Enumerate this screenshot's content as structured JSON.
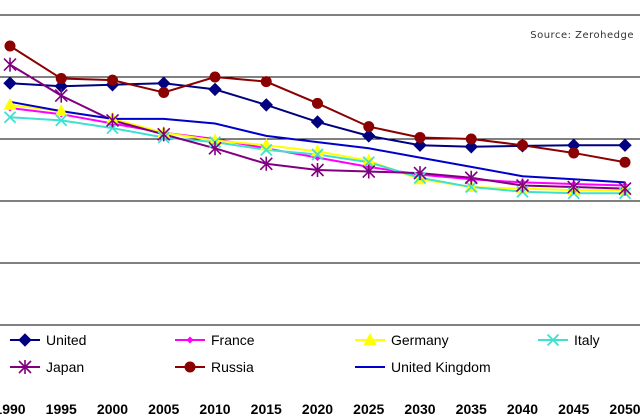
{
  "source": "Source: Zerohedge",
  "chart_data": {
    "type": "line",
    "categories": [
      "1990",
      "1995",
      "2000",
      "2005",
      "2010",
      "2015",
      "2020",
      "2025",
      "2030",
      "2035",
      "2040",
      "2045",
      "2050"
    ],
    "ylim": [
      0,
      1000
    ],
    "grid": true,
    "legend_position": "bottom",
    "series": [
      {
        "name": "United",
        "color": "#000080",
        "marker": "diamond",
        "values": [
          780,
          770,
          775,
          780,
          760,
          710,
          655,
          610,
          580,
          575,
          578,
          580,
          580
        ]
      },
      {
        "name": "France",
        "color": "#ff00ff",
        "marker": "small-diamond",
        "values": [
          700,
          680,
          650,
          620,
          600,
          570,
          540,
          510,
          485,
          470,
          460,
          455,
          450
        ]
      },
      {
        "name": "Germany",
        "color": "#ffff00",
        "marker": "triangle",
        "values": [
          710,
          690,
          665,
          620,
          595,
          580,
          560,
          530,
          470,
          445,
          440,
          435,
          435
        ]
      },
      {
        "name": "Italy",
        "color": "#40e0d0",
        "marker": "x",
        "values": [
          670,
          660,
          635,
          605,
          590,
          565,
          550,
          525,
          475,
          445,
          430,
          425,
          425
        ]
      },
      {
        "name": "Japan",
        "color": "#800080",
        "marker": "asterisk",
        "values": [
          840,
          740,
          660,
          615,
          570,
          520,
          500,
          495,
          490,
          475,
          450,
          445,
          440
        ]
      },
      {
        "name": "Russia",
        "color": "#8b0000",
        "marker": "circle",
        "values": [
          900,
          795,
          790,
          750,
          800,
          785,
          715,
          640,
          605,
          600,
          580,
          555,
          525
        ]
      },
      {
        "name": "United Kingdom",
        "color": "#0000cc",
        "marker": "none",
        "values": [
          720,
          690,
          665,
          665,
          650,
          610,
          590,
          570,
          540,
          510,
          480,
          470,
          460
        ]
      }
    ]
  }
}
